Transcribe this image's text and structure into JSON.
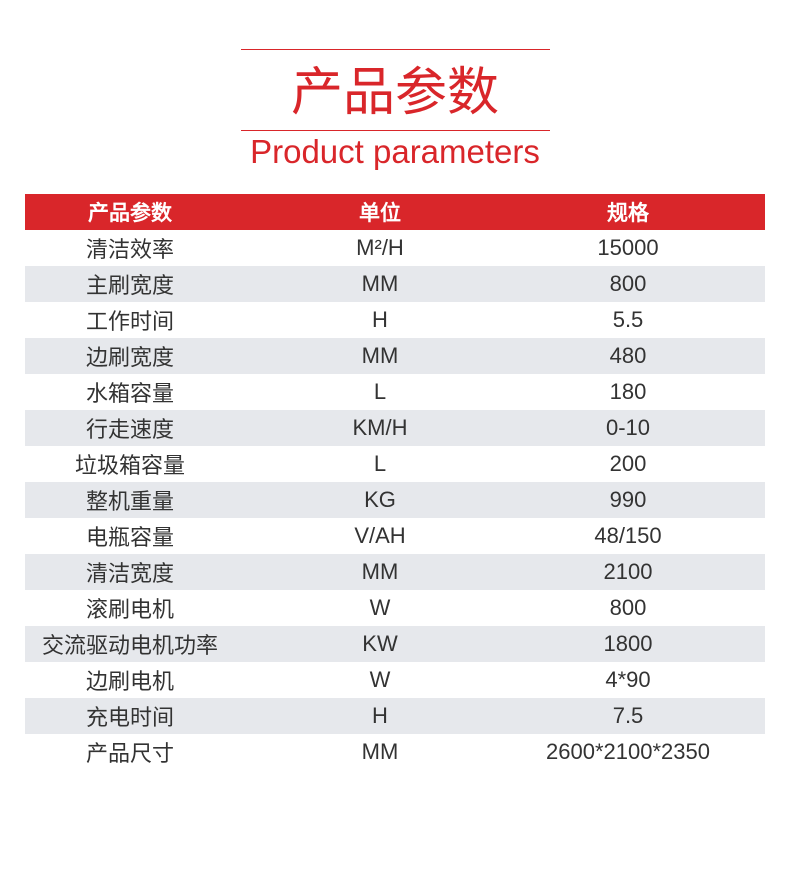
{
  "title": {
    "cn": "产品参数",
    "en": "Product parameters"
  },
  "colors": {
    "accent": "#d9262a",
    "alt_row": "#e6e8ec"
  },
  "table": {
    "headers": [
      "产品参数",
      "单位",
      "规格"
    ],
    "rows": [
      [
        "清洁效率",
        "M²/H",
        "15000"
      ],
      [
        "主刷宽度",
        "MM",
        "800"
      ],
      [
        "工作时间",
        "H",
        "5.5"
      ],
      [
        "边刷宽度",
        "MM",
        "480"
      ],
      [
        "水箱容量",
        "L",
        "180"
      ],
      [
        "行走速度",
        "KM/H",
        "0-10"
      ],
      [
        "垃圾箱容量",
        "L",
        "200"
      ],
      [
        "整机重量",
        "KG",
        "990"
      ],
      [
        "电瓶容量",
        "V/AH",
        "48/150"
      ],
      [
        "清洁宽度",
        "MM",
        "2100"
      ],
      [
        "滚刷电机",
        "W",
        "800"
      ],
      [
        "交流驱动电机功率",
        "KW",
        "1800"
      ],
      [
        "边刷电机",
        "W",
        "4*90"
      ],
      [
        "充电时间",
        "H",
        "7.5"
      ],
      [
        "产品尺寸",
        "MM",
        "2600*2100*2350"
      ]
    ]
  }
}
